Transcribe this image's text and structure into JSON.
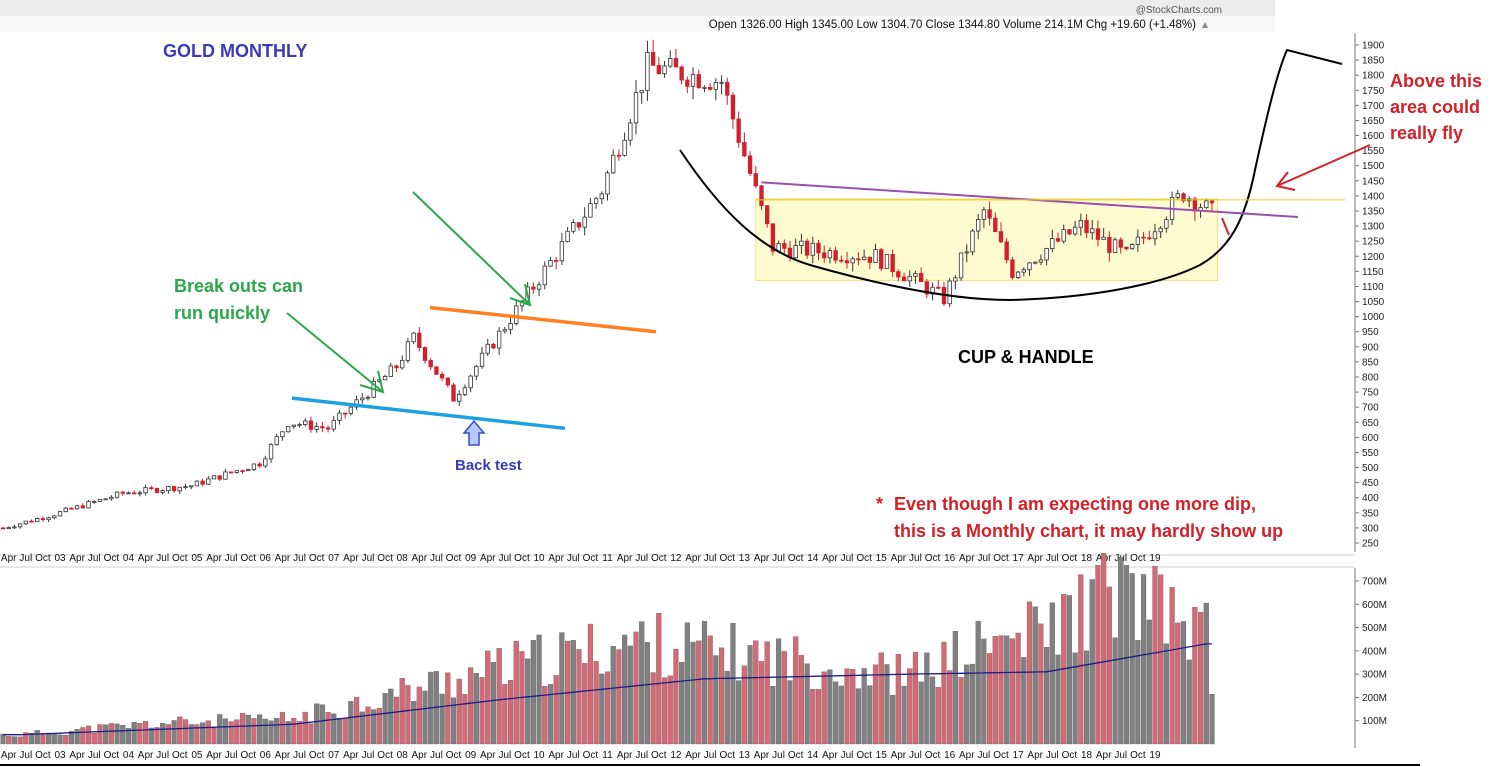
{
  "header": {
    "brand": "@StockCharts.com",
    "ohlc": "Open 1326.00  High 1345.00  Low 1304.70  Close 1344.80  Volume 214.1M  Chg +19.60 (+1.48%)",
    "chg_arrow": "up-triangle-icon"
  },
  "annotations": {
    "title": "GOLD MONTHLY",
    "breakout_line1": "Break outs can",
    "breakout_line2": "run quickly",
    "backtest": "Back test",
    "cup_handle": "CUP & HANDLE",
    "above_line1": "Above this",
    "above_line2": "area could",
    "above_line3": "really fly",
    "footnote_star": "*",
    "footnote_line1": "Even though I am expecting one more dip,",
    "footnote_line2": "this is a Monthly chart, it may hardly show up"
  },
  "colors": {
    "up_candle": "#333333",
    "down_candle": "#d0202c",
    "vol_up": "#808080",
    "vol_down": "#d46a75",
    "ma_line": "#1d1d8a",
    "title_blue": "#3a3ab8",
    "green_text": "#2aa84a",
    "red_text": "#d42028",
    "cup": "#000000",
    "resistance_purple": "#9b4fb0",
    "support_blue": "#1ca0e0",
    "orange": "#ff8020",
    "channel_fill": "#fffbd0"
  },
  "chart_data": [
    {
      "type": "candlestick",
      "title": "GOLD MONTHLY",
      "price_ylim": [
        240,
        1920
      ],
      "y_ticks": [
        250,
        300,
        350,
        400,
        450,
        500,
        550,
        600,
        650,
        700,
        750,
        800,
        850,
        900,
        950,
        1000,
        1050,
        1100,
        1150,
        1200,
        1250,
        1300,
        1350,
        1400,
        1450,
        1500,
        1550,
        1600,
        1650,
        1700,
        1750,
        1800,
        1850,
        1900
      ],
      "x_tick_labels": [
        "Apr",
        "Jul",
        "Oct",
        "03",
        "Apr",
        "Jul",
        "Oct",
        "04",
        "Apr",
        "Jul",
        "Oct",
        "05",
        "Apr",
        "Jul",
        "Oct",
        "06",
        "Apr",
        "Jul",
        "Oct",
        "07",
        "Apr",
        "Jul",
        "Oct",
        "08",
        "Apr",
        "Jul",
        "Oct",
        "09",
        "Apr",
        "Jul",
        "Oct",
        "10",
        "Apr",
        "Jul",
        "Oct",
        "11",
        "Apr",
        "Jul",
        "Oct",
        "12",
        "Apr",
        "Jul",
        "Oct",
        "13",
        "Apr",
        "Jul",
        "Oct",
        "14",
        "Apr",
        "Jul",
        "Oct",
        "15",
        "Apr",
        "Jul",
        "Oct",
        "16",
        "Apr",
        "Jul",
        "Oct",
        "17",
        "Apr",
        "Jul",
        "Oct",
        "18",
        "Apr",
        "Jul",
        "Oct",
        "19"
      ],
      "close_path_approx": [
        {
          "x": "2002-03",
          "y": 300
        },
        {
          "x": "2002-12",
          "y": 345
        },
        {
          "x": "2003-12",
          "y": 415
        },
        {
          "x": "2004-12",
          "y": 440
        },
        {
          "x": "2005-12",
          "y": 515
        },
        {
          "x": "2006-05",
          "y": 650
        },
        {
          "x": "2006-12",
          "y": 630
        },
        {
          "x": "2007-12",
          "y": 835
        },
        {
          "x": "2008-03",
          "y": 930
        },
        {
          "x": "2008-10",
          "y": 730
        },
        {
          "x": "2009-12",
          "y": 1100
        },
        {
          "x": "2010-12",
          "y": 1420
        },
        {
          "x": "2011-08",
          "y": 1830
        },
        {
          "x": "2012-09",
          "y": 1780
        },
        {
          "x": "2013-06",
          "y": 1230
        },
        {
          "x": "2014-12",
          "y": 1200
        },
        {
          "x": "2015-12",
          "y": 1060
        },
        {
          "x": "2016-07",
          "y": 1350
        },
        {
          "x": "2016-12",
          "y": 1150
        },
        {
          "x": "2017-12",
          "y": 1300
        },
        {
          "x": "2018-08",
          "y": 1200
        },
        {
          "x": "2019-06",
          "y": 1410
        },
        {
          "x": "2019-11",
          "y": 1345
        }
      ],
      "overlays": [
        {
          "name": "cup",
          "kind": "curve"
        },
        {
          "name": "resistance",
          "kind": "line",
          "from": {
            "x": "2013-04",
            "y": 1445
          },
          "to": {
            "x": "2019-12",
            "y": 1330
          }
        },
        {
          "name": "support",
          "kind": "line",
          "from": {
            "x": "2006-06",
            "y": 730
          },
          "to": {
            "x": "2009-12",
            "y": 630
          }
        },
        {
          "name": "breakout-line",
          "kind": "line",
          "from": {
            "x": "2008-01",
            "y": 1030
          },
          "to": {
            "x": "2011-02",
            "y": 950
          }
        },
        {
          "name": "trading-range",
          "kind": "band",
          "y": [
            1120,
            1390
          ]
        }
      ]
    },
    {
      "type": "bar",
      "title": "Volume",
      "ylim": [
        0,
        760
      ],
      "y_ticks": [
        "100M",
        "200M",
        "300M",
        "400M",
        "500M",
        "600M",
        "700M"
      ],
      "values_approx_millions": [
        {
          "x": "2002-06",
          "y": 40
        },
        {
          "x": "2004-06",
          "y": 90
        },
        {
          "x": "2006-06",
          "y": 110
        },
        {
          "x": "2008-06",
          "y": 260
        },
        {
          "x": "2009-06",
          "y": 330
        },
        {
          "x": "2011-06",
          "y": 450
        },
        {
          "x": "2013-06",
          "y": 380
        },
        {
          "x": "2015-06",
          "y": 300
        },
        {
          "x": "2016-06",
          "y": 420
        },
        {
          "x": "2017-06",
          "y": 500
        },
        {
          "x": "2018-06",
          "y": 680
        },
        {
          "x": "2019-10",
          "y": 480
        }
      ],
      "moving_average_approx": [
        {
          "x": "2002-06",
          "y": 40
        },
        {
          "x": "2006-06",
          "y": 85
        },
        {
          "x": "2009-06",
          "y": 190
        },
        {
          "x": "2012-06",
          "y": 280
        },
        {
          "x": "2015-06",
          "y": 300
        },
        {
          "x": "2017-06",
          "y": 310
        },
        {
          "x": "2019-10",
          "y": 430
        }
      ]
    }
  ]
}
